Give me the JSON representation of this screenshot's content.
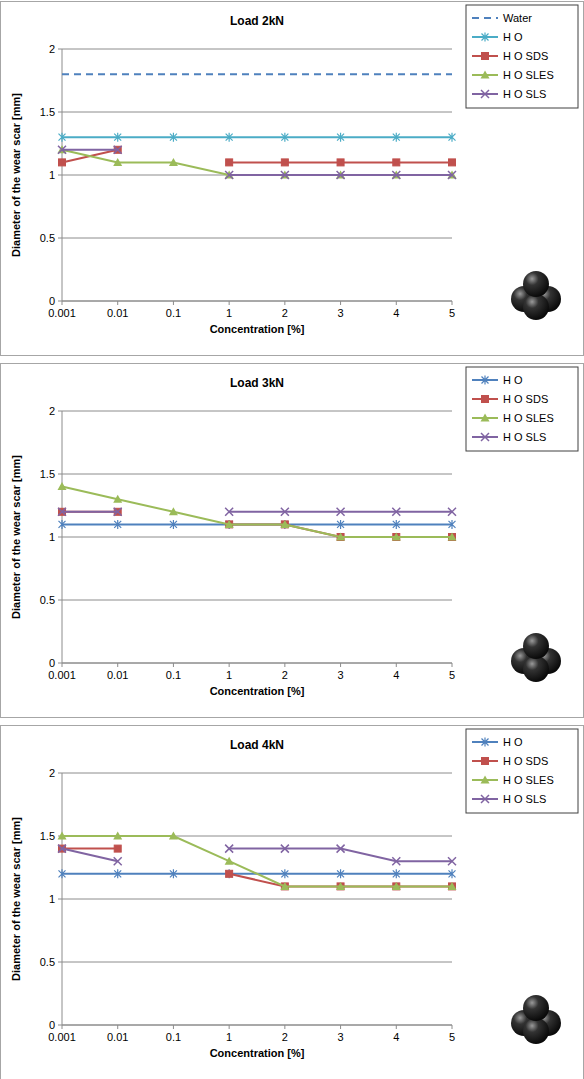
{
  "chart_data": [
    {
      "type": "line",
      "title": "Load 2kN",
      "x_label": "Concentration [%]",
      "y_label": "Diameter of the wear scar [mm]",
      "categories": [
        "0.001",
        "0.01",
        "0.1",
        "1",
        "2",
        "3",
        "4",
        "5"
      ],
      "series": [
        {
          "name": "Water",
          "color": "#4f81bd",
          "marker": "none",
          "line_style": "dashed",
          "values": [
            1.8,
            1.8,
            1.8,
            1.8,
            1.8,
            1.8,
            1.8,
            1.8
          ]
        },
        {
          "name": "H O",
          "color": "#4bacc6",
          "marker": "star",
          "line_style": "solid",
          "values": [
            1.3,
            1.3,
            1.3,
            1.3,
            1.3,
            1.3,
            1.3,
            1.3
          ]
        },
        {
          "name": "H O SDS",
          "color": "#c0504d",
          "marker": "square",
          "line_style": "solid",
          "values": [
            1.1,
            1.2,
            null,
            1.1,
            1.1,
            1.1,
            1.1,
            1.1
          ]
        },
        {
          "name": "H O SLES",
          "color": "#9bbb59",
          "marker": "triangle",
          "line_style": "solid",
          "values": [
            1.2,
            1.1,
            1.1,
            1.0,
            1.0,
            1.0,
            1.0,
            1.0
          ]
        },
        {
          "name": "H O SLS",
          "color": "#8064a2",
          "marker": "x",
          "line_style": "solid",
          "values": [
            1.2,
            1.2,
            null,
            1.0,
            1.0,
            1.0,
            1.0,
            1.0
          ]
        }
      ],
      "ylim": [
        0,
        2
      ],
      "yticks": [
        0,
        0.5,
        1,
        1.5,
        2
      ],
      "grid": true,
      "legend": "right"
    },
    {
      "type": "line",
      "title": "Load 3kN",
      "x_label": "Concentration [%]",
      "y_label": "Diameter of the wear scar [mm]",
      "categories": [
        "0.001",
        "0.01",
        "0.1",
        "1",
        "2",
        "3",
        "4",
        "5"
      ],
      "series": [
        {
          "name": "H O",
          "color": "#4f81bd",
          "marker": "star",
          "line_style": "solid",
          "values": [
            1.1,
            1.1,
            1.1,
            1.1,
            1.1,
            1.1,
            1.1,
            1.1
          ]
        },
        {
          "name": "H O SDS",
          "color": "#c0504d",
          "marker": "square",
          "line_style": "solid",
          "values": [
            1.2,
            1.2,
            null,
            1.1,
            1.1,
            1.0,
            1.0,
            1.0
          ]
        },
        {
          "name": "H O SLES",
          "color": "#9bbb59",
          "marker": "triangle",
          "line_style": "solid",
          "values": [
            1.4,
            1.3,
            1.2,
            1.1,
            1.1,
            1.0,
            1.0,
            1.0
          ]
        },
        {
          "name": "H O SLS",
          "color": "#8064a2",
          "marker": "x",
          "line_style": "solid",
          "values": [
            1.2,
            1.2,
            null,
            1.2,
            1.2,
            1.2,
            1.2,
            1.2
          ]
        }
      ],
      "ylim": [
        0,
        2
      ],
      "yticks": [
        0,
        0.5,
        1,
        1.5,
        2
      ],
      "grid": true,
      "legend": "right"
    },
    {
      "type": "line",
      "title": "Load 4kN",
      "x_label": "Concentration [%]",
      "y_label": "Diameter of the wear scar [mm]",
      "categories": [
        "0.001",
        "0.01",
        "0.1",
        "1",
        "2",
        "3",
        "4",
        "5"
      ],
      "series": [
        {
          "name": "H O",
          "color": "#4f81bd",
          "marker": "star",
          "line_style": "solid",
          "values": [
            1.2,
            1.2,
            1.2,
            1.2,
            1.2,
            1.2,
            1.2,
            1.2
          ]
        },
        {
          "name": "H O SDS",
          "color": "#c0504d",
          "marker": "square",
          "line_style": "solid",
          "values": [
            1.4,
            1.4,
            null,
            1.2,
            1.1,
            1.1,
            1.1,
            1.1
          ]
        },
        {
          "name": "H O SLES",
          "color": "#9bbb59",
          "marker": "triangle",
          "line_style": "solid",
          "values": [
            1.5,
            1.5,
            1.5,
            1.3,
            1.1,
            1.1,
            1.1,
            1.1
          ]
        },
        {
          "name": "H O SLS",
          "color": "#8064a2",
          "marker": "x",
          "line_style": "solid",
          "values": [
            1.4,
            1.3,
            null,
            1.4,
            1.4,
            1.4,
            1.3,
            1.3
          ]
        }
      ],
      "ylim": [
        0,
        2
      ],
      "yticks": [
        0,
        0.5,
        1,
        1.5,
        2
      ],
      "grid": true,
      "legend": "right"
    }
  ]
}
